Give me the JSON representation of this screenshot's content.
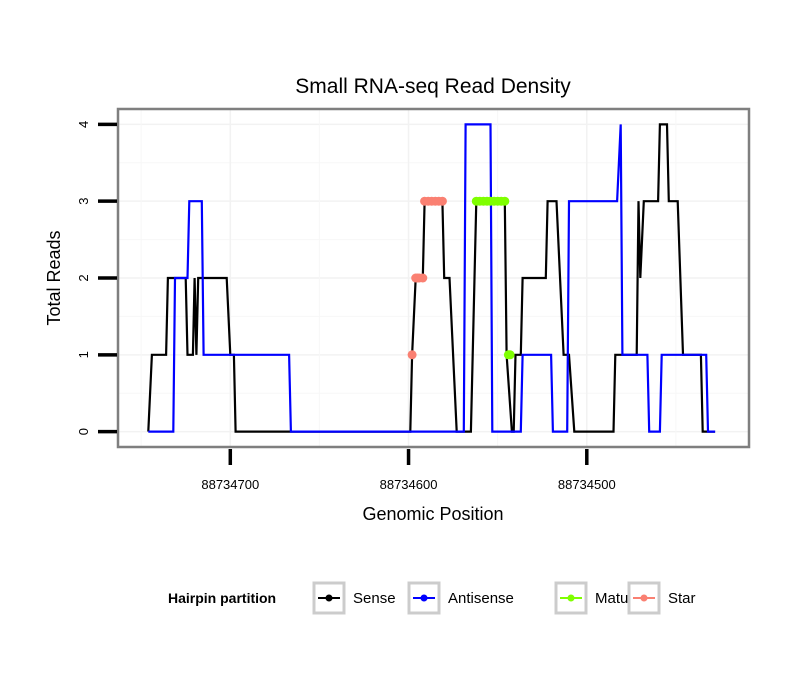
{
  "chart_data": {
    "type": "line",
    "step": true,
    "title": "Small RNA-seq Read Density",
    "xlabel": "Genomic Position",
    "ylabel": "Total Reads",
    "x_reversed": true,
    "xlim": [
      88734763,
      88734409
    ],
    "ylim": [
      -0.2,
      4.2
    ],
    "x_ticks": [
      88734700,
      88734600,
      88734500
    ],
    "x_tick_labels": [
      "88734700",
      "88734600",
      "88734500"
    ],
    "y_ticks": [
      0,
      1,
      2,
      3,
      4
    ],
    "y_tick_labels": [
      "0",
      "1",
      "2",
      "3",
      "4"
    ],
    "grid": true,
    "legend": {
      "title": "Hairpin partition",
      "position": "bottom",
      "entries": [
        {
          "name": "Sense",
          "color": "#000000"
        },
        {
          "name": "Antisense",
          "color": "#0000ff"
        },
        {
          "name": "Mature",
          "color": "#7fff00"
        },
        {
          "name": "Star",
          "color": "#fa8072"
        }
      ]
    },
    "series": [
      {
        "name": "Sense",
        "color": "#000000",
        "points": [
          [
            88734746,
            0
          ],
          [
            88734744,
            1
          ],
          [
            88734736,
            1
          ],
          [
            88734735,
            2
          ],
          [
            88734725,
            2
          ],
          [
            88734724,
            1
          ],
          [
            88734721,
            1
          ],
          [
            88734720,
            2
          ],
          [
            88734719,
            1
          ],
          [
            88734718,
            2
          ],
          [
            88734702,
            2
          ],
          [
            88734700,
            1
          ],
          [
            88734698,
            1
          ],
          [
            88734697,
            0
          ],
          [
            88734599,
            0
          ],
          [
            88734598,
            1
          ],
          [
            88734596,
            2
          ],
          [
            88734592,
            2
          ],
          [
            88734591,
            3
          ],
          [
            88734581,
            3
          ],
          [
            88734580,
            2
          ],
          [
            88734577,
            2
          ],
          [
            88734573,
            0
          ],
          [
            88734565,
            0
          ],
          [
            88734564,
            1
          ],
          [
            88734562,
            3
          ],
          [
            88734546,
            3
          ],
          [
            88734545,
            1
          ],
          [
            88734542,
            0
          ],
          [
            88734541,
            0
          ],
          [
            88734540,
            1
          ],
          [
            88734537,
            1
          ],
          [
            88734536,
            2
          ],
          [
            88734523,
            2
          ],
          [
            88734522,
            3
          ],
          [
            88734517,
            3
          ],
          [
            88734513,
            1
          ],
          [
            88734510,
            1
          ],
          [
            88734507,
            0
          ],
          [
            88734485,
            0
          ],
          [
            88734484,
            1
          ],
          [
            88734472,
            1
          ],
          [
            88734471,
            3
          ],
          [
            88734470,
            2
          ],
          [
            88734468,
            3
          ],
          [
            88734460,
            3
          ],
          [
            88734459,
            4
          ],
          [
            88734455,
            4
          ],
          [
            88734454,
            3
          ],
          [
            88734449,
            3
          ],
          [
            88734446,
            1
          ],
          [
            88734436,
            1
          ],
          [
            88734435,
            0
          ],
          [
            88734428,
            0
          ]
        ]
      },
      {
        "name": "Antisense",
        "color": "#0000ff",
        "points": [
          [
            88734746,
            0
          ],
          [
            88734732,
            0
          ],
          [
            88734731,
            2
          ],
          [
            88734724,
            2
          ],
          [
            88734723,
            3
          ],
          [
            88734716,
            3
          ],
          [
            88734715,
            1
          ],
          [
            88734667,
            1
          ],
          [
            88734666,
            0
          ],
          [
            88734569,
            0
          ],
          [
            88734568,
            4
          ],
          [
            88734554,
            4
          ],
          [
            88734553,
            0
          ],
          [
            88734537,
            0
          ],
          [
            88734536,
            1
          ],
          [
            88734520,
            1
          ],
          [
            88734519,
            0
          ],
          [
            88734511,
            0
          ],
          [
            88734510,
            3
          ],
          [
            88734483,
            3
          ],
          [
            88734481,
            4
          ],
          [
            88734480,
            1
          ],
          [
            88734466,
            1
          ],
          [
            88734465,
            0
          ],
          [
            88734459,
            0
          ],
          [
            88734458,
            1
          ],
          [
            88734433,
            1
          ],
          [
            88734432,
            0
          ],
          [
            88734428,
            0
          ]
        ]
      },
      {
        "name": "Mature",
        "color": "#7fff00",
        "points": [
          [
            88734562,
            3
          ],
          [
            88734560,
            3
          ],
          [
            88734558,
            3
          ],
          [
            88734556,
            3
          ],
          [
            88734554,
            3
          ],
          [
            88734552,
            3
          ],
          [
            88734550,
            3
          ],
          [
            88734548,
            3
          ],
          [
            88734546,
            3
          ],
          [
            88734544,
            1
          ],
          [
            88734543,
            1
          ]
        ]
      },
      {
        "name": "Star",
        "color": "#fa8072",
        "points": [
          [
            88734598,
            1
          ],
          [
            88734596,
            2
          ],
          [
            88734595,
            2
          ],
          [
            88734594,
            2
          ],
          [
            88734592,
            2
          ],
          [
            88734591,
            3
          ],
          [
            88734589,
            3
          ],
          [
            88734587,
            3
          ],
          [
            88734585,
            3
          ],
          [
            88734583,
            3
          ],
          [
            88734581,
            3
          ]
        ]
      }
    ]
  }
}
